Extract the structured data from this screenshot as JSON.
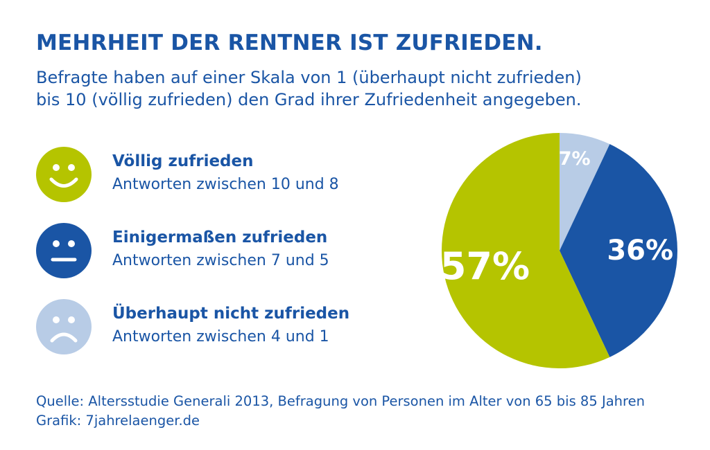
{
  "title": "MEHRHEIT DER RENTNER IST ZUFRIEDEN.",
  "subtitle_line1": "Befragte haben auf einer Skala von 1 (überhaupt nicht zufrieden)",
  "subtitle_line2": "bis 10 (völlig zufrieden) den Grad ihrer Zufriedenheit angegeben.",
  "legend": [
    {
      "title": "Völlig zufrieden",
      "subtitle": "Antworten zwischen 10 und 8",
      "icon": "smiley-happy-icon",
      "color": "#b5c400"
    },
    {
      "title": "Einigermaßen zufrieden",
      "subtitle": "Antworten zwischen 7 und 5",
      "icon": "smiley-neutral-icon",
      "color": "#1a55a5"
    },
    {
      "title": "Überhaupt nicht zufrieden",
      "subtitle": "Antworten zwischen 4 und 1",
      "icon": "smiley-sad-icon",
      "color": "#b8cce6"
    }
  ],
  "chart_data": {
    "type": "pie",
    "slices": [
      {
        "label": "7%",
        "value": 7,
        "color": "#b8cce6"
      },
      {
        "label": "36%",
        "value": 36,
        "color": "#1a55a5"
      },
      {
        "label": "57%",
        "value": 57,
        "color": "#b5c400"
      }
    ]
  },
  "footer": {
    "source": "Quelle: Altersstudie Generali 2013, Befragung von Personen im Alter von 65 bis 85 Jahren",
    "credit": "Grafik: 7jahrelaenger.de"
  }
}
